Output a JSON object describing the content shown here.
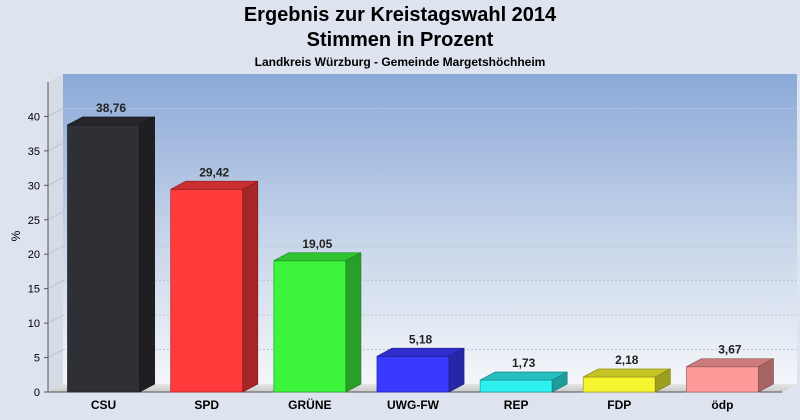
{
  "chart_data": {
    "type": "bar",
    "title": "Ergebnis zur Kreistagswahl 2014",
    "subtitle": "Stimmen in Prozent",
    "subtitle2": "Landkreis Würzburg - Gemeinde Margetshöchheim",
    "ylabel": "%",
    "ylim": [
      0,
      45
    ],
    "yticks": [
      0,
      5,
      10,
      15,
      20,
      25,
      30,
      35,
      40
    ],
    "grid": true,
    "categories": [
      "CSU",
      "SPD",
      "GRÜNE",
      "UWG-FW",
      "REP",
      "FDP",
      "ödp"
    ],
    "values": [
      38.76,
      29.42,
      19.05,
      5.18,
      1.73,
      2.18,
      3.67
    ],
    "value_labels": [
      "38,76",
      "29,42",
      "19,05",
      "5,18",
      "1,73",
      "2,18",
      "3,67"
    ],
    "colors": [
      "#2f3035",
      "#ff3b3b",
      "#3df53d",
      "#3a3aff",
      "#2ef0f0",
      "#f5f530",
      "#ff9a9a"
    ]
  }
}
